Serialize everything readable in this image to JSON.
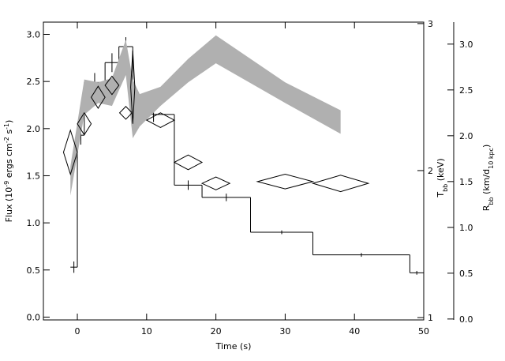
{
  "chart_data": {
    "type": "multi-axis",
    "xlabel": [
      {
        "text": "Time (s)"
      }
    ],
    "ylabel": [
      {
        "text": "Flux (10"
      },
      {
        "text": "-9",
        "style": "sup"
      },
      {
        "text": " ergs cm"
      },
      {
        "text": "-2",
        "style": "sup"
      },
      {
        "text": " s"
      },
      {
        "text": "-1",
        "style": "sup"
      },
      {
        "text": ")"
      }
    ],
    "y2label": [
      {
        "text": "T"
      },
      {
        "text": "bb",
        "style": "sub"
      },
      {
        "text": " (keV)"
      }
    ],
    "y3label": [
      {
        "text": "R"
      },
      {
        "text": "bb",
        "style": "sub"
      },
      {
        "text": " (km/d"
      },
      {
        "text": "10 kpc",
        "style": "sub"
      },
      {
        "text": ")"
      }
    ],
    "xlim": [
      -4.9,
      50
    ],
    "xticks": [
      0,
      10,
      20,
      30,
      40,
      50
    ],
    "ylim": [
      -0.03,
      3.13
    ],
    "yticks": [
      {
        "value": 0,
        "label": "0.0"
      },
      {
        "value": 0.5,
        "label": "0.5"
      },
      {
        "value": 1,
        "label": "1.0"
      },
      {
        "value": 1.5,
        "label": "1.5"
      },
      {
        "value": 2,
        "label": "2.0"
      },
      {
        "value": 2.5,
        "label": "2.5"
      },
      {
        "value": 3,
        "label": "3.0"
      }
    ],
    "y2lim": [
      0.984,
      3.01
    ],
    "y2ticks": [
      1,
      2,
      3
    ],
    "y3lim": [
      -0.01,
      3.24
    ],
    "y3ticks": [
      {
        "value": 0,
        "label": "0.0"
      },
      {
        "value": 0.5,
        "label": "0.5"
      },
      {
        "value": 1,
        "label": "1.0"
      },
      {
        "value": 1.5,
        "label": "1.5"
      },
      {
        "value": 2,
        "label": "2.0"
      },
      {
        "value": 2.5,
        "label": "2.5"
      },
      {
        "value": 3,
        "label": "3.0"
      }
    ],
    "series": [
      {
        "type": "step",
        "axis": "y",
        "color": "#000000",
        "bins": [
          -1,
          0,
          1,
          4,
          6,
          8,
          14,
          18,
          25,
          34,
          48,
          50
        ],
        "values": [
          0.53,
          1.93,
          2.49,
          2.7,
          2.87,
          2.15,
          1.4,
          1.27,
          0.9,
          0.66,
          0.47
        ],
        "errors": [
          0.06,
          0.1,
          0.1,
          0.1,
          0.1,
          0.08,
          0.05,
          0.04,
          0.02,
          0.02,
          0.02
        ]
      },
      {
        "type": "band",
        "axis": "y2",
        "color": "#b0b0b0",
        "x": [
          -1,
          1,
          3,
          5,
          7,
          8,
          9,
          12,
          16,
          20,
          30,
          38
        ],
        "low": [
          1.83,
          2.38,
          2.46,
          2.44,
          2.65,
          2.22,
          2.3,
          2.44,
          2.6,
          2.73,
          2.46,
          2.25
        ],
        "high": [
          2.03,
          2.62,
          2.6,
          2.63,
          2.89,
          2.62,
          2.52,
          2.57,
          2.76,
          2.92,
          2.6,
          2.41
        ]
      },
      {
        "type": "diamond",
        "axis": "y3",
        "color": "#000000",
        "x": [
          -1,
          1,
          3,
          5,
          7,
          8,
          12,
          16,
          20,
          30,
          38
        ],
        "xerr": [
          1,
          1,
          1,
          1,
          0.9,
          0.3,
          2,
          2,
          2,
          4,
          4
        ],
        "values": [
          1.82,
          2.13,
          2.42,
          2.55,
          2.25,
          2.53,
          2.17,
          1.71,
          1.48,
          1.5,
          1.48
        ],
        "errors": [
          0.24,
          0.12,
          0.12,
          0.1,
          0.07,
          0.4,
          0.08,
          0.08,
          0.07,
          0.08,
          0.09
        ]
      }
    ]
  }
}
